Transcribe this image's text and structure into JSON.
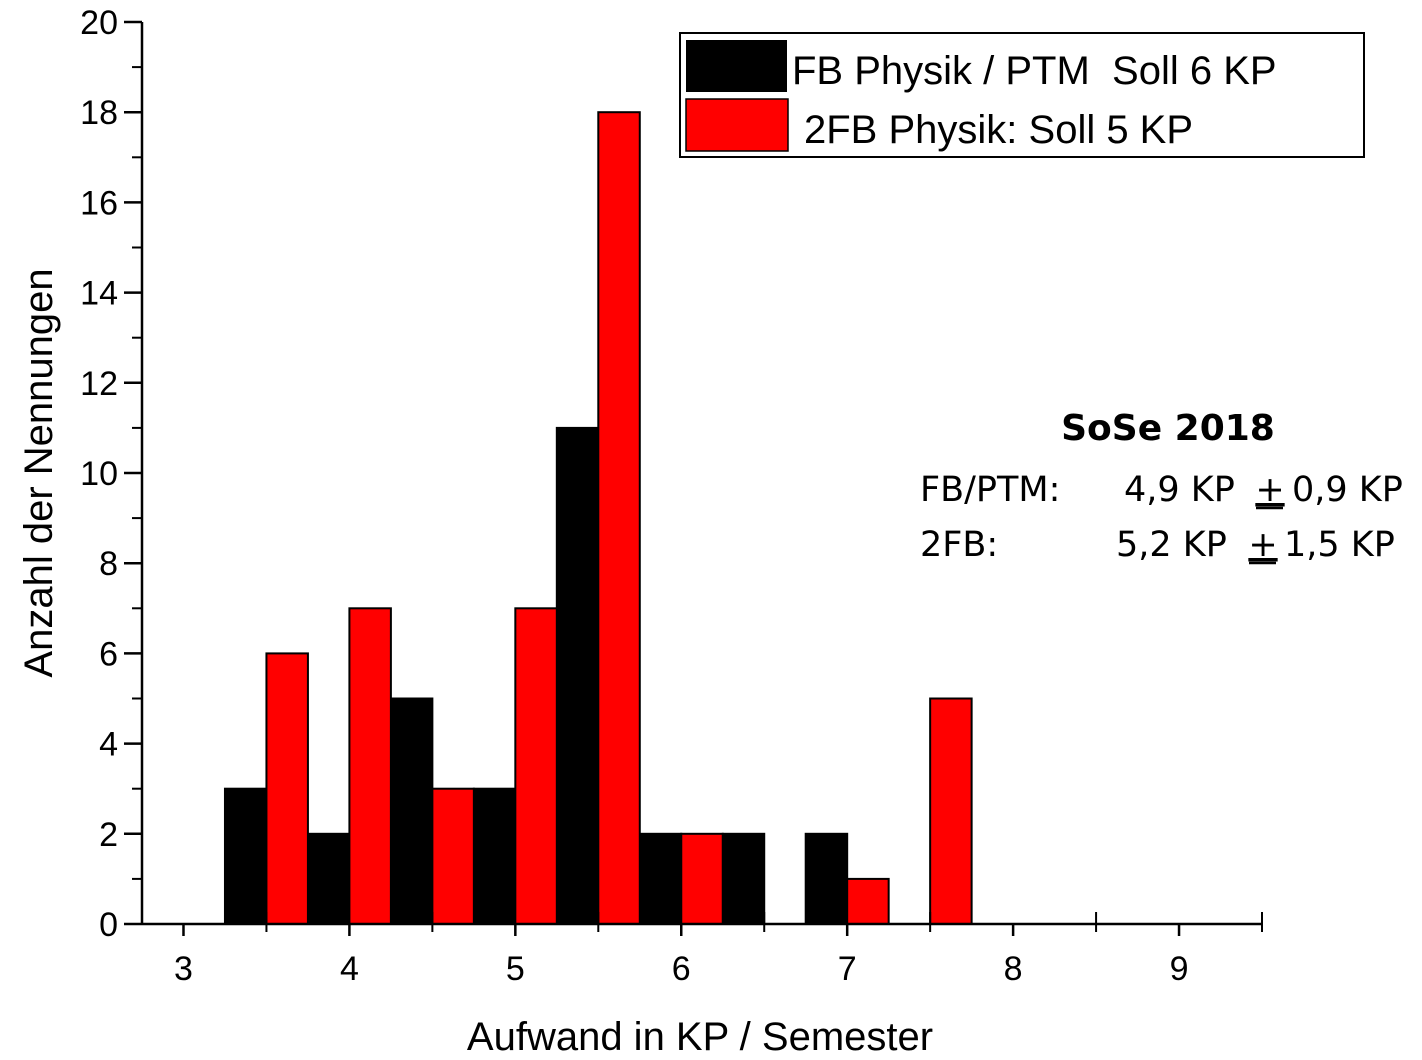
{
  "chart_data": {
    "type": "bar",
    "xlabel": "Aufwand in KP / Semester",
    "ylabel": "Anzahl der Nennungen",
    "xlim": [
      2.75,
      9.5
    ],
    "ylim": [
      0,
      20
    ],
    "x_ticks": [
      3,
      4,
      5,
      6,
      7,
      8,
      9
    ],
    "y_ticks": [
      0,
      2,
      4,
      6,
      8,
      10,
      12,
      14,
      16,
      18,
      20
    ],
    "bin_width": 0.5,
    "grid": false,
    "legend_position": "top-right",
    "series": [
      {
        "name": "FB Physik / PTM  Soll 6 KP",
        "color": "#000000",
        "x": [
          3.5,
          4.0,
          4.5,
          5.0,
          5.5,
          6.0,
          6.5,
          7.0
        ],
        "values": [
          3,
          2,
          5,
          3,
          11,
          2,
          2,
          2
        ]
      },
      {
        "name": "2FB Physik: Soll 5 KP",
        "color": "#ff0000",
        "x": [
          3.5,
          4.0,
          4.5,
          5.0,
          5.5,
          6.0,
          7.0,
          7.5
        ],
        "values": [
          6,
          7,
          3,
          7,
          18,
          2,
          1,
          5
        ]
      }
    ],
    "annotation": {
      "title": "SoSe 2018",
      "rows": [
        {
          "label": "FB/PTM:",
          "mean": "4,9 KP",
          "pm": "+",
          "sd": "0,9 KP"
        },
        {
          "label": "2FB:",
          "mean": "5,2 KP",
          "pm": "+",
          "sd": "1,5 KP"
        }
      ]
    }
  }
}
